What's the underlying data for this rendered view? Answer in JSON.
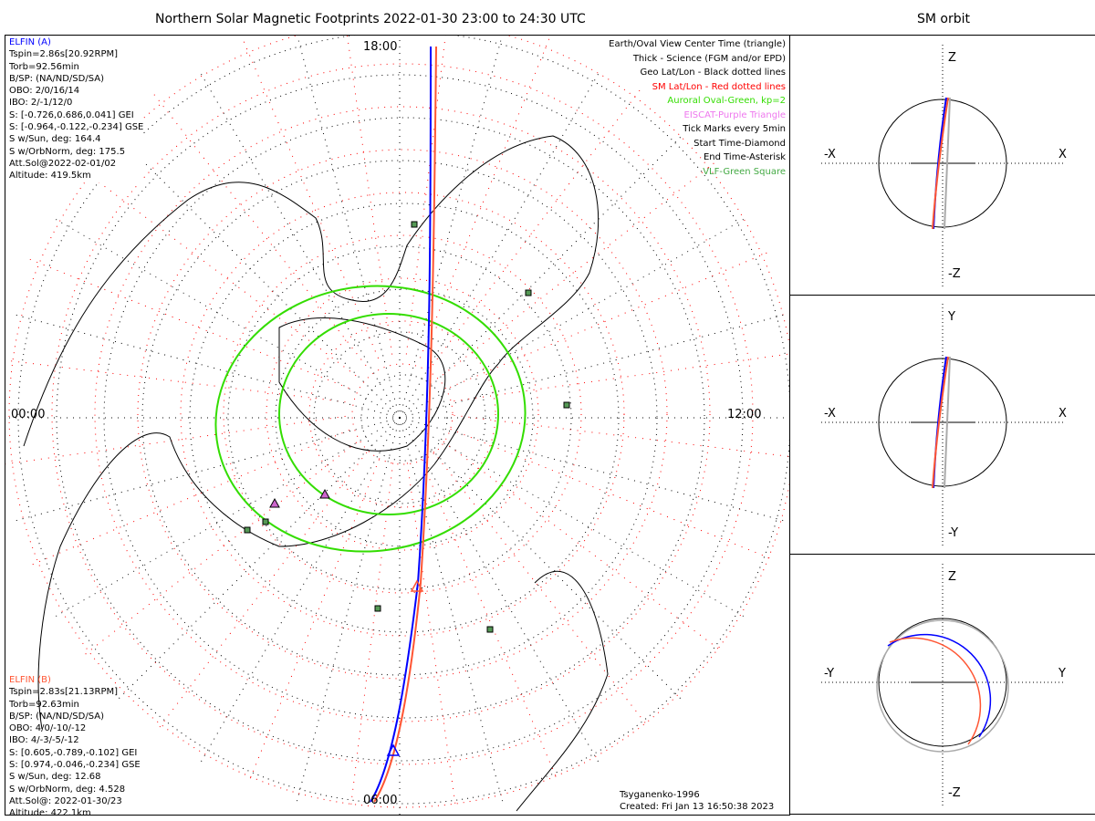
{
  "title": "Northern Solar Magnetic Footprints 2022-01-30 23:00 to 24:30 UTC",
  "sm_title": "SM orbit",
  "time_labels": {
    "top": "18:00",
    "left": "00:00",
    "right": "12:00",
    "bottom": "06:00"
  },
  "elfin_a": {
    "name": "ELFIN (A)",
    "color": "#0000ff",
    "lines": [
      "Tspin=2.86s[20.92RPM]",
      "Torb=92.56min",
      "B/SP: (NA/ND/SD/SA)",
      "OBO: 2/0/16/14",
      "IBO: 2/-1/12/0",
      "S: [-0.726,0.686,0.041] GEI",
      "S: [-0.964,-0.122,-0.234] GSE",
      "S w/Sun, deg: 164.4",
      "S w/OrbNorm, deg: 175.5",
      "Att.Sol@2022-02-01/02",
      "Altitude: 419.5km"
    ]
  },
  "elfin_b": {
    "name": "ELFIN (B)",
    "color": "#ff5533",
    "lines": [
      "Tspin=2.83s[21.13RPM]",
      "Torb=92.63min",
      "B/SP: (NA/ND/SD/SA)",
      "OBO: 4/0/-10/-12",
      "IBO: 4/-3/-5/-12",
      "S: [0.605,-0.789,-0.102] GEI",
      "S: [0.974,-0.046,-0.234] GSE",
      "S w/Sun, deg: 12.68",
      "S w/OrbNorm, deg: 4.528",
      "Att.Sol@: 2022-01-30/23",
      "Altitude: 422.1km"
    ]
  },
  "legend": [
    {
      "text": "Earth/Oval View Center Time (triangle)",
      "color": "#000000"
    },
    {
      "text": "Thick - Science (FGM and/or EPD)",
      "color": "#000000"
    },
    {
      "text": "Geo Lat/Lon - Black dotted lines",
      "color": "#000000"
    },
    {
      "text": "SM Lat/Lon - Red dotted lines",
      "color": "#ff0000"
    },
    {
      "text": "Auroral Oval-Green, kp=2",
      "color": "#33dd00"
    },
    {
      "text": "EISCAT-Purple Triangle",
      "color": "#ee77ee"
    },
    {
      "text": "Tick Marks every 5min",
      "color": "#000000"
    },
    {
      "text": "Start Time-Diamond",
      "color": "#000000"
    },
    {
      "text": "End Time-Asterisk",
      "color": "#000000"
    },
    {
      "text": "VLF-Green Square",
      "color": "#44aa44"
    }
  ],
  "footer": {
    "model": "Tsyganenko-1996",
    "created": "Created: Fri Jan 13 16:50:38 2023"
  },
  "sm_panels": [
    {
      "top": "Z",
      "bottom": "-Z",
      "left": "-X",
      "right": "X"
    },
    {
      "top": "Y",
      "bottom": "-Y",
      "left": "-X",
      "right": "X"
    },
    {
      "top": "Z",
      "bottom": "-Z",
      "left": "-Y",
      "right": "Y"
    }
  ],
  "colors": {
    "oval": "#33dd00",
    "sm_grid": "#ff0000",
    "geo_grid": "#000000",
    "vlf": "#559955",
    "eiscat": "#cc66cc",
    "track_a": "#0000ff",
    "track_b": "#ff5533",
    "orbit_gray": "#aaaaaa"
  }
}
